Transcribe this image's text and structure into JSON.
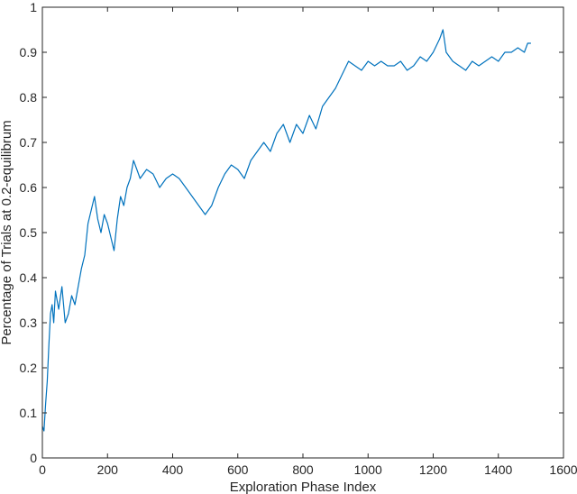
{
  "chart_data": {
    "type": "line",
    "title": "",
    "xlabel": "Exploration Phase Index",
    "ylabel": "Percentage of Trials at 0.2-equilibrum",
    "xlim": [
      0,
      1600
    ],
    "ylim": [
      0,
      1
    ],
    "xticks": [
      "0",
      "200",
      "400",
      "600",
      "800",
      "1000",
      "1200",
      "1400",
      "1600"
    ],
    "yticks": [
      "0",
      "0.1",
      "0.2",
      "0.3",
      "0.4",
      "0.5",
      "0.6",
      "0.7",
      "0.8",
      "0.9",
      "1"
    ],
    "grid": false,
    "line_color": "#0072BD",
    "series": [
      {
        "x": [
          0,
          5,
          10,
          15,
          20,
          25,
          30,
          35,
          40,
          50,
          60,
          70,
          80,
          90,
          100,
          110,
          120,
          130,
          140,
          150,
          160,
          170,
          180,
          190,
          200,
          210,
          220,
          230,
          240,
          250,
          260,
          270,
          280,
          290,
          300,
          320,
          340,
          360,
          380,
          400,
          420,
          440,
          460,
          480,
          500,
          520,
          540,
          560,
          580,
          600,
          620,
          640,
          660,
          680,
          700,
          720,
          740,
          760,
          780,
          800,
          820,
          840,
          860,
          880,
          900,
          920,
          940,
          960,
          980,
          1000,
          1020,
          1040,
          1060,
          1080,
          1100,
          1120,
          1140,
          1160,
          1180,
          1200,
          1220,
          1230,
          1240,
          1260,
          1280,
          1300,
          1320,
          1340,
          1360,
          1380,
          1400,
          1420,
          1440,
          1460,
          1480,
          1490,
          1500
        ],
        "y": [
          0.07,
          0.06,
          0.12,
          0.17,
          0.25,
          0.32,
          0.34,
          0.3,
          0.37,
          0.33,
          0.38,
          0.3,
          0.32,
          0.36,
          0.34,
          0.38,
          0.42,
          0.45,
          0.52,
          0.55,
          0.58,
          0.53,
          0.5,
          0.54,
          0.52,
          0.49,
          0.46,
          0.53,
          0.58,
          0.56,
          0.6,
          0.62,
          0.66,
          0.64,
          0.62,
          0.64,
          0.63,
          0.6,
          0.62,
          0.63,
          0.62,
          0.6,
          0.58,
          0.56,
          0.54,
          0.56,
          0.6,
          0.63,
          0.65,
          0.64,
          0.62,
          0.66,
          0.68,
          0.7,
          0.68,
          0.72,
          0.74,
          0.7,
          0.74,
          0.72,
          0.76,
          0.73,
          0.78,
          0.8,
          0.82,
          0.85,
          0.88,
          0.87,
          0.86,
          0.88,
          0.87,
          0.88,
          0.87,
          0.87,
          0.88,
          0.86,
          0.87,
          0.89,
          0.88,
          0.9,
          0.93,
          0.95,
          0.9,
          0.88,
          0.87,
          0.86,
          0.88,
          0.87,
          0.88,
          0.89,
          0.88,
          0.9,
          0.9,
          0.91,
          0.9,
          0.92,
          0.92
        ]
      }
    ]
  }
}
